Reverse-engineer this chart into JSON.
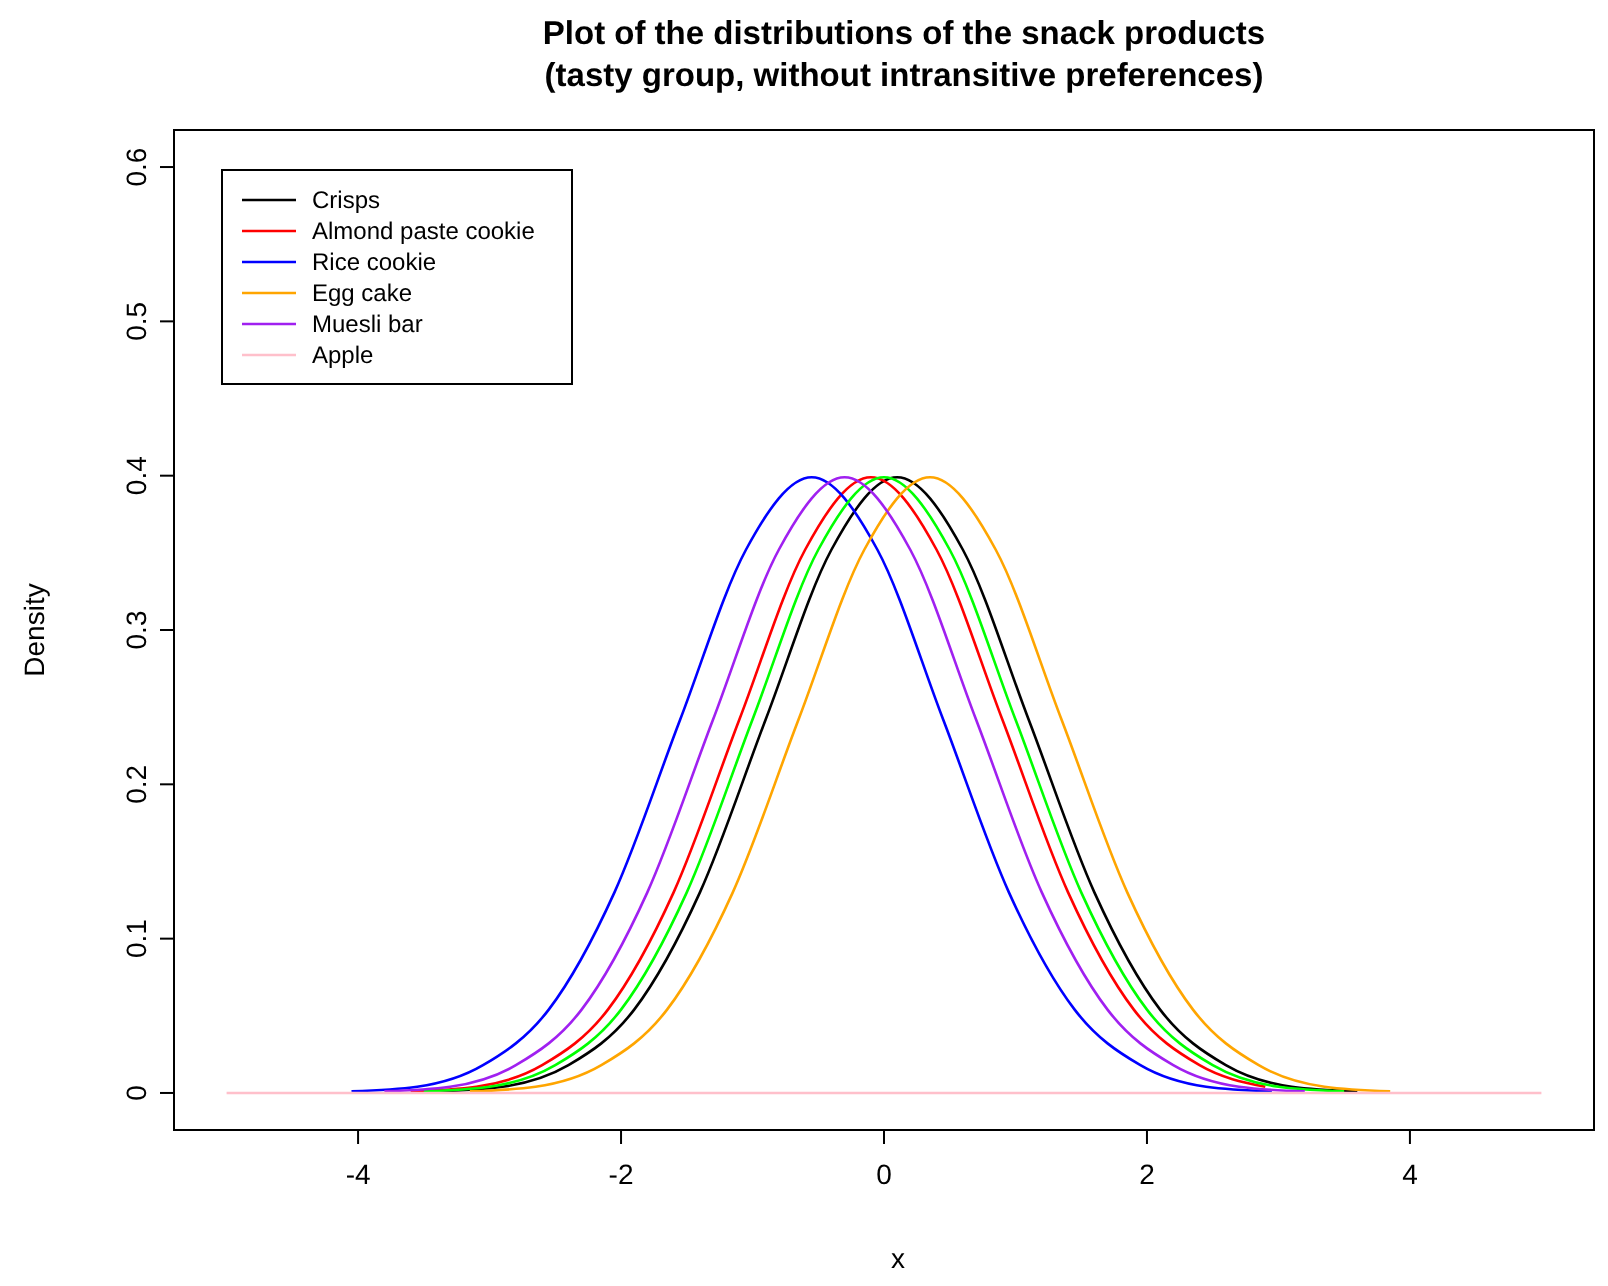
{
  "chart_data": {
    "type": "line",
    "title": "Plot of the distributions of the snack products\n(tasty group, without intransitive preferences)",
    "xlabel": "x",
    "ylabel": "Density",
    "xlim": [
      -5.4,
      5.4
    ],
    "ylim": [
      -0.024,
      0.624
    ],
    "xticks": [
      -4,
      -2,
      0,
      2,
      4
    ],
    "yticks": [
      0,
      0.1,
      0.2,
      0.3,
      0.4,
      0.5,
      0.6
    ],
    "grid": false,
    "legend": "top left",
    "marker": "none",
    "line_style": "solid",
    "series": [
      {
        "name": "Crisps",
        "color": "#000000",
        "x": [
          -3.4,
          -2.9,
          -2.4,
          -1.9,
          -1.4,
          -0.9,
          -0.4,
          0.1,
          0.6,
          1.1,
          1.6,
          2.1,
          2.6,
          3.1,
          3.6
        ],
        "values": [
          0.001,
          0.004,
          0.018,
          0.054,
          0.13,
          0.242,
          0.352,
          0.399,
          0.352,
          0.242,
          0.13,
          0.054,
          0.018,
          0.004,
          0.001
        ]
      },
      {
        "name": "Almond paste cookie",
        "color": "#ff0000",
        "x": [
          -3.6,
          -3.1,
          -2.6,
          -2.1,
          -1.6,
          -1.1,
          -0.6,
          -0.1,
          0.4,
          0.9,
          1.4,
          1.9,
          2.4,
          2.9
        ],
        "values": [
          0.001,
          0.004,
          0.018,
          0.054,
          0.13,
          0.242,
          0.352,
          0.399,
          0.352,
          0.242,
          0.13,
          0.054,
          0.018,
          0.004
        ]
      },
      {
        "name": "Rice cookie",
        "color": "#0000ff",
        "x": [
          -4.05,
          -3.55,
          -3.05,
          -2.55,
          -2.05,
          -1.55,
          -1.05,
          -0.55,
          -0.05,
          0.45,
          0.95,
          1.45,
          1.95,
          2.45,
          2.95
        ],
        "values": [
          0.001,
          0.004,
          0.018,
          0.054,
          0.13,
          0.242,
          0.352,
          0.399,
          0.352,
          0.242,
          0.13,
          0.054,
          0.018,
          0.004,
          0.001
        ]
      },
      {
        "color": "#00ff00",
        "x": [
          -3.5,
          -3,
          -2.5,
          -2,
          -1.5,
          -1,
          -0.5,
          0,
          0.5,
          1,
          1.5,
          2,
          2.5,
          3,
          3.5
        ],
        "values": [
          0.001,
          0.004,
          0.018,
          0.054,
          0.13,
          0.242,
          0.352,
          0.399,
          0.352,
          0.242,
          0.13,
          0.054,
          0.018,
          0.004,
          0.001
        ]
      },
      {
        "name": "Egg cake",
        "color": "#ffa500",
        "x": [
          -3.15,
          -2.65,
          -2.15,
          -1.65,
          -1.15,
          -0.65,
          -0.15,
          0.35,
          0.85,
          1.35,
          1.85,
          2.35,
          2.85,
          3.35,
          3.85
        ],
        "values": [
          0.001,
          0.004,
          0.018,
          0.054,
          0.13,
          0.242,
          0.352,
          0.399,
          0.352,
          0.242,
          0.13,
          0.054,
          0.018,
          0.004,
          0.001
        ]
      },
      {
        "name": "Muesli bar",
        "color": "#a020f0",
        "x": [
          -3.8,
          -3.3,
          -2.8,
          -2.3,
          -1.8,
          -1.3,
          -0.8,
          -0.3,
          0.2,
          0.7,
          1.2,
          1.7,
          2.2,
          2.7,
          3.2
        ],
        "values": [
          0.001,
          0.004,
          0.018,
          0.054,
          0.13,
          0.242,
          0.352,
          0.399,
          0.352,
          0.242,
          0.13,
          0.054,
          0.018,
          0.004,
          0.001
        ]
      },
      {
        "name": "Apple",
        "color": "#ffc0cb",
        "x": [
          -5,
          5
        ],
        "values": [
          0,
          0
        ]
      }
    ]
  }
}
